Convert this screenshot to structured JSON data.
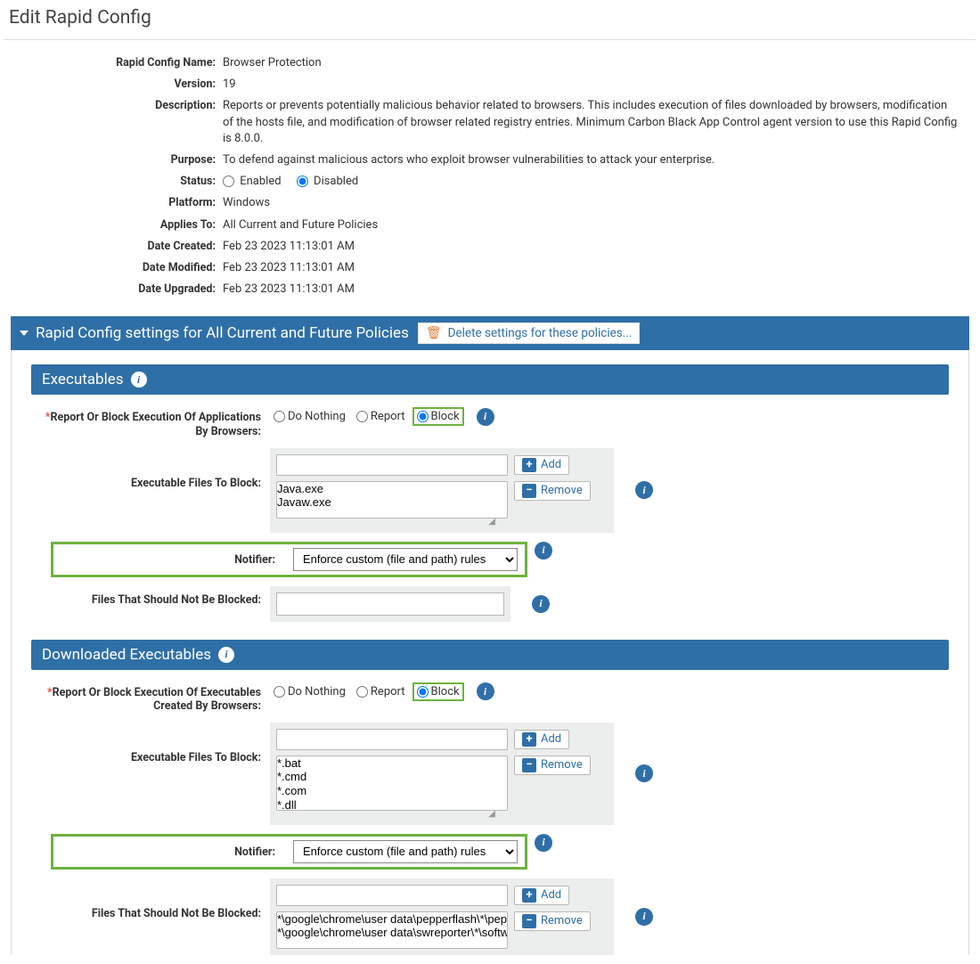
{
  "page": {
    "title": "Edit Rapid Config"
  },
  "info": {
    "name_label": "Rapid Config Name:",
    "name": "Browser Protection",
    "version_label": "Version:",
    "version": "19",
    "description_label": "Description:",
    "description": "Reports or prevents potentially malicious behavior related to browsers. This includes execution of files downloaded by browsers, modification of the hosts file, and modification of browser related registry entries. Minimum Carbon Black App Control agent version to use this Rapid Config is 8.0.0.",
    "purpose_label": "Purpose:",
    "purpose": "To defend against malicious actors who exploit browser vulnerabilities to attack your enterprise.",
    "status_label": "Status:",
    "status_enabled_label": "Enabled",
    "status_disabled_label": "Disabled",
    "status_selected": "Disabled",
    "platform_label": "Platform:",
    "platform": "Windows",
    "applies_label": "Applies To:",
    "applies": "All Current and Future Policies",
    "created_label": "Date Created:",
    "created": "Feb 23 2023 11:13:01 AM",
    "modified_label": "Date Modified:",
    "modified": "Feb 23 2023 11:13:01 AM",
    "upgraded_label": "Date Upgraded:",
    "upgraded": "Feb 23 2023 11:13:01 AM"
  },
  "settings_header": {
    "title": "Rapid Config settings for All Current and Future Policies",
    "delete_label": "Delete settings for these policies..."
  },
  "buttons": {
    "add": "Add",
    "remove": "Remove"
  },
  "radio_options": {
    "do_nothing": "Do Nothing",
    "report": "Report",
    "block": "Block"
  },
  "executables": {
    "title": "Executables",
    "report_block_label": "Report Or Block Execution Of Applications By Browsers:",
    "selected": "Block",
    "files_label": "Executable Files To Block:",
    "files": [
      "Java.exe",
      "Javaw.exe"
    ],
    "notifier_label": "Notifier:",
    "notifier_value": "Enforce custom (file and path) rules",
    "not_blocked_label": "Files That Should Not Be Blocked:"
  },
  "downloaded": {
    "title": "Downloaded Executables",
    "report_block_label": "Report Or Block Execution Of Executables Created By Browsers:",
    "selected": "Block",
    "files_label": "Executable Files To Block:",
    "files": [
      "*.bat",
      "*.cmd",
      "*.com",
      "*.dll"
    ],
    "notifier_label": "Notifier:",
    "notifier_value": "Enforce custom (file and path) rules",
    "not_blocked_label": "Files That Should Not Be Blocked:",
    "not_blocked_files": [
      "*\\google\\chrome\\user data\\pepperflash\\*\\pepf",
      "*\\google\\chrome\\user data\\swreporter\\*\\softw"
    ]
  },
  "colors": {
    "bar_blue": "#2f6fa7",
    "highlight_green": "#6db33f",
    "trash_orange": "#e1813b",
    "panel_grey": "#eceded"
  }
}
